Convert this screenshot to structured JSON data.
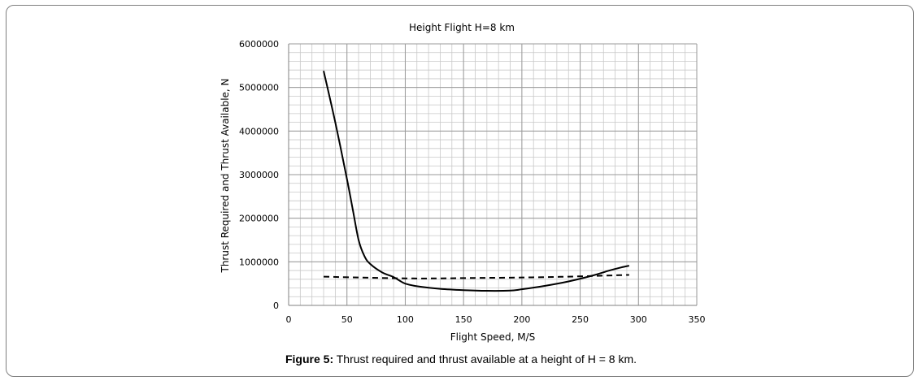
{
  "caption": {
    "label": "Figure 5:",
    "text": " Thrust required and thrust available at a height of H = 8 km."
  },
  "chart_data": {
    "type": "line",
    "title": "Height Flight H=8 km",
    "xlabel": "Flight Speed, M/S",
    "ylabel": "Thrust Required and Thrust Available, N",
    "xlim": [
      0,
      350
    ],
    "ylim": [
      0,
      6000000
    ],
    "xticks": [
      0,
      50,
      100,
      150,
      200,
      250,
      300,
      350
    ],
    "yticks": [
      0,
      1000000,
      2000000,
      3000000,
      4000000,
      5000000,
      6000000
    ],
    "grid": true,
    "legend": "none",
    "series": [
      {
        "style": "solid",
        "color": "#000000",
        "x": [
          30,
          40,
          50,
          55,
          60,
          65,
          70,
          80,
          90,
          95,
          100,
          110,
          130,
          150,
          170,
          190,
          200,
          220,
          240,
          260,
          275,
          285,
          292
        ],
        "y": [
          5380000,
          4200000,
          2900000,
          2200000,
          1500000,
          1130000,
          950000,
          760000,
          650000,
          570000,
          500000,
          440000,
          380000,
          350000,
          335000,
          340000,
          370000,
          450000,
          550000,
          680000,
          800000,
          870000,
          910000
        ]
      },
      {
        "style": "dashed",
        "color": "#000000",
        "x": [
          30,
          60,
          100,
          130,
          160,
          200,
          240,
          280,
          292
        ],
        "y": [
          660000,
          640000,
          620000,
          620000,
          630000,
          640000,
          660000,
          690000,
          700000
        ]
      }
    ]
  }
}
